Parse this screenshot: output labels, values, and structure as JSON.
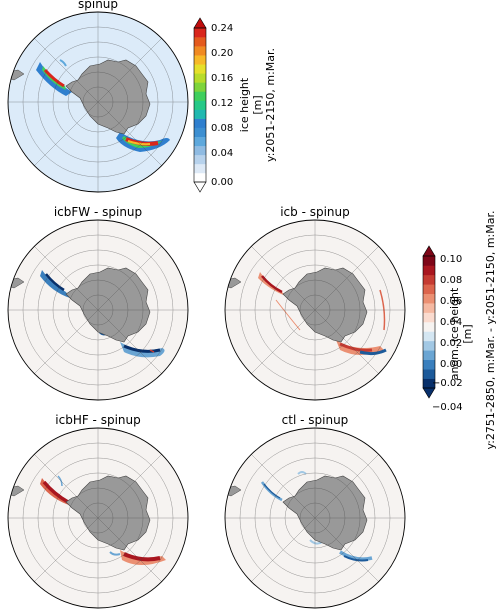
{
  "figure": {
    "panels": [
      {
        "id": "spinup",
        "title": "spinup",
        "kind": "absolute"
      },
      {
        "id": "icbFW",
        "title": "icbFW - spinup",
        "kind": "anomaly"
      },
      {
        "id": "icb",
        "title": "icb - spinup",
        "kind": "anomaly"
      },
      {
        "id": "icbHF",
        "title": "icbHF - spinup",
        "kind": "anomaly"
      },
      {
        "id": "ctl",
        "title": "ctl - spinup",
        "kind": "anomaly"
      }
    ],
    "colorbar_abs": {
      "ticks": [
        "0.24",
        "0.20",
        "0.16",
        "0.12",
        "0.08",
        "0.04",
        "0.00"
      ],
      "label_lines": [
        "ice height",
        "[m]",
        "y:2051-2150, m:Mar."
      ],
      "colors": [
        "#ffffff",
        "#dde9f6",
        "#b7d2ec",
        "#8fbbe2",
        "#5ea8dc",
        "#3d8fd1",
        "#2f7fce",
        "#20b8b0",
        "#26c987",
        "#3fcf5d",
        "#7ed43b",
        "#b8dc2a",
        "#e6e02a",
        "#f7b928",
        "#f08a22",
        "#e45a1d",
        "#d9261c",
        "#c00d0d"
      ]
    },
    "colorbar_anom": {
      "ticks": [
        "0.10",
        "0.08",
        "0.06",
        "0.04",
        "0.02",
        "0.00",
        "−0.02",
        "−0.04"
      ],
      "label_lines": [
        "anom. ice height",
        "[m]",
        "y:2751-2850, m:Mar. - y:2051-2150, m:Mar."
      ],
      "colors": [
        "#08306b",
        "#1c5a9a",
        "#3a7fbd",
        "#6aa5d3",
        "#a2c8e4",
        "#d4e6f2",
        "#f6f3f1",
        "#fadbcf",
        "#f5b9a2",
        "#eb9073",
        "#dc654d",
        "#c53b32",
        "#a9161f",
        "#7e0618"
      ]
    }
  }
}
